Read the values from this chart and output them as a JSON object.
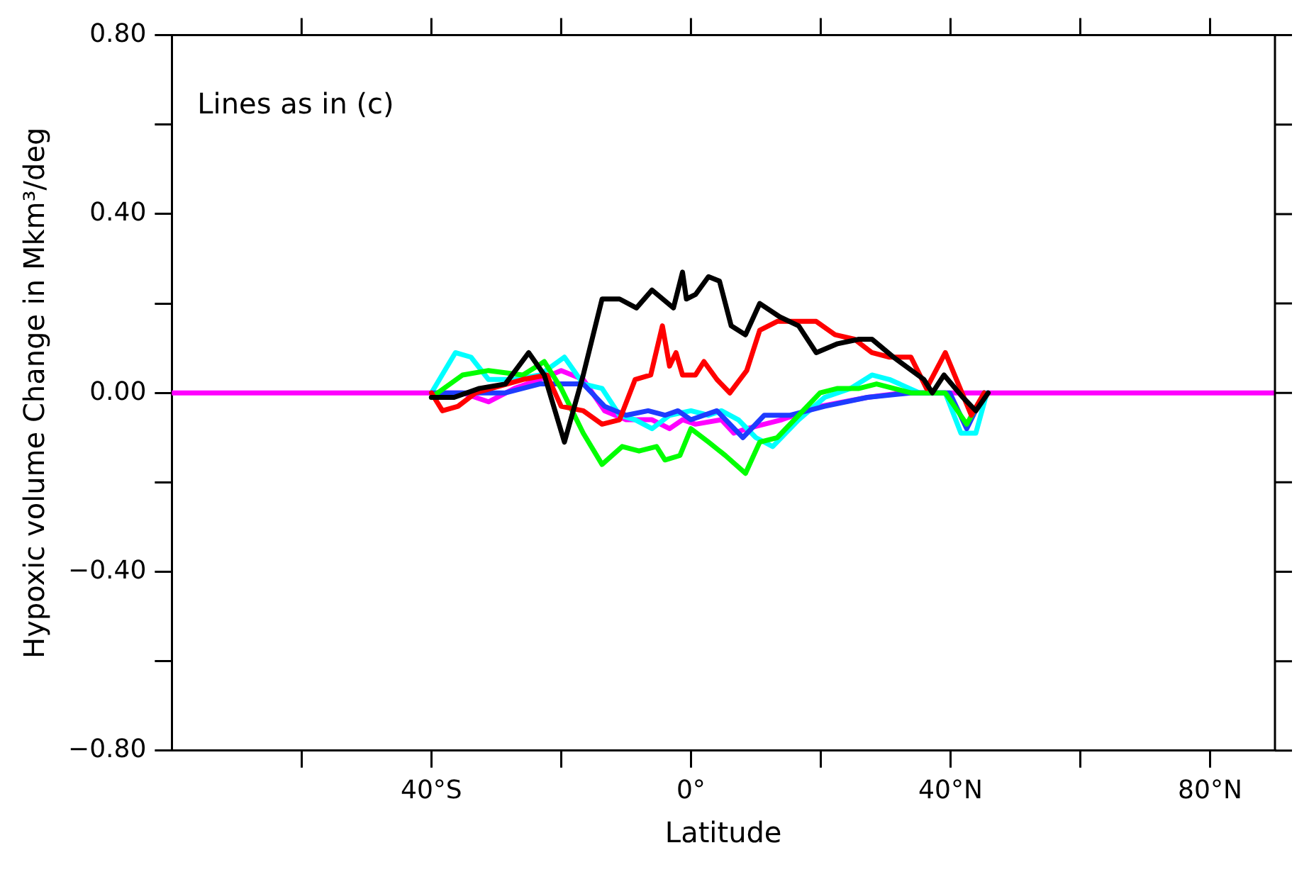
{
  "chart_data": {
    "type": "line",
    "xlabel": "Latitude",
    "ylabel": "Hypoxic volume Change in Mkm³/deg",
    "annotations": [
      "Lines as in (c)"
    ],
    "xlim": [
      -80,
      90
    ],
    "ylim": [
      -0.8,
      0.8
    ],
    "xticks": [
      {
        "value": -60,
        "label": null
      },
      {
        "value": -40,
        "label": "40°S"
      },
      {
        "value": -20,
        "label": null
      },
      {
        "value": 0,
        "label": "0°"
      },
      {
        "value": 20,
        "label": null
      },
      {
        "value": 40,
        "label": "40°N"
      },
      {
        "value": 60,
        "label": null
      },
      {
        "value": 80,
        "label": "80°N"
      }
    ],
    "yticks": [
      {
        "value": -0.8,
        "label": "−0.80"
      },
      {
        "value": -0.6,
        "label": null
      },
      {
        "value": -0.4,
        "label": "−0.40"
      },
      {
        "value": -0.2,
        "label": null
      },
      {
        "value": 0,
        "label": "0.00"
      },
      {
        "value": 0.2,
        "label": null
      },
      {
        "value": 0.4,
        "label": "0.40"
      },
      {
        "value": 0.6,
        "label": null
      },
      {
        "value": 0.8,
        "label": "0.80"
      }
    ],
    "grid": false,
    "legend": false,
    "marker": "none",
    "line_style": "solid",
    "series": [
      {
        "color": "#000000",
        "x": [
          -40,
          -36.5,
          -32.6,
          -28.6,
          -25,
          -22.6,
          -19.5,
          -16.6,
          -13.7,
          -11,
          -8.4,
          -6,
          -2.7,
          -1.3,
          -0.7,
          0.7,
          2.7,
          4.4,
          6.2,
          8.4,
          10.6,
          13.7,
          16.6,
          19.3,
          22.6,
          25.9,
          27.9,
          31.2,
          35.9,
          37.2,
          39,
          41.9,
          43.9,
          45.8
        ],
        "values": [
          -0.01,
          -0.01,
          0.01,
          0.02,
          0.09,
          0.04,
          -0.11,
          0.04,
          0.21,
          0.21,
          0.19,
          0.23,
          0.19,
          0.27,
          0.21,
          0.22,
          0.26,
          0.25,
          0.15,
          0.13,
          0.2,
          0.17,
          0.15,
          0.09,
          0.11,
          0.12,
          0.12,
          0.08,
          0.03,
          0,
          0.04,
          -0.01,
          -0.04,
          0
        ]
      },
      {
        "color": "#ff0000",
        "x": [
          -40,
          -38.3,
          -35.9,
          -33.2,
          -25.9,
          -22.2,
          -20,
          -16.6,
          -13.7,
          -11,
          -8.6,
          -6.2,
          -4.4,
          -3.3,
          -2.3,
          -1.3,
          0.7,
          2,
          4,
          6,
          8.6,
          10.6,
          13.3,
          16,
          19.3,
          22.2,
          25.2,
          27.9,
          30.6,
          33.9,
          36.3,
          39.2,
          41.2,
          43.2,
          45.2
        ],
        "values": [
          0,
          -0.04,
          -0.03,
          0,
          0.03,
          0.04,
          -0.03,
          -0.04,
          -0.07,
          -0.06,
          0.03,
          0.04,
          0.15,
          0.06,
          0.09,
          0.04,
          0.04,
          0.07,
          0.03,
          0,
          0.05,
          0.14,
          0.16,
          0.16,
          0.16,
          0.13,
          0.12,
          0.09,
          0.08,
          0.08,
          0.01,
          0.09,
          0.02,
          -0.05,
          0
        ]
      },
      {
        "color": "#00ff00",
        "x": [
          -40,
          -35.2,
          -31.2,
          -25.9,
          -22.6,
          -20,
          -16.6,
          -13.7,
          -10.6,
          -8,
          -5.3,
          -4,
          -1.7,
          0,
          2.7,
          5.3,
          8.4,
          10.6,
          13.3,
          16.6,
          19.9,
          22.6,
          25.9,
          28.6,
          33.9,
          39.2,
          42.5,
          45.2
        ],
        "values": [
          -0.01,
          0.04,
          0.05,
          0.04,
          0.07,
          0.01,
          -0.09,
          -0.16,
          -0.12,
          -0.13,
          -0.12,
          -0.15,
          -0.14,
          -0.08,
          -0.11,
          -0.14,
          -0.18,
          -0.11,
          -0.1,
          -0.05,
          0,
          0.01,
          0.01,
          0.02,
          0,
          0,
          -0.07,
          0
        ]
      },
      {
        "color": "#1e3cff",
        "x": [
          -40,
          -33.9,
          -28.6,
          -23.3,
          -20,
          -16.6,
          -13.3,
          -10,
          -6.6,
          -4,
          -2,
          0,
          4,
          8,
          11.3,
          15.3,
          20.6,
          27.2,
          33.9,
          39.9,
          42.5,
          45.2
        ],
        "values": [
          0,
          0,
          0,
          0.02,
          0.02,
          0.02,
          -0.03,
          -0.05,
          -0.04,
          -0.05,
          -0.04,
          -0.06,
          -0.04,
          -0.1,
          -0.05,
          -0.05,
          -0.03,
          -0.01,
          0,
          0,
          -0.08,
          0
        ]
      },
      {
        "color": "#00ffff",
        "x": [
          -40,
          -36.3,
          -33.9,
          -31.2,
          -27.2,
          -23.3,
          -19.5,
          -16.6,
          -13.7,
          -11,
          -8.6,
          -6,
          -3.3,
          0,
          2.7,
          4.7,
          7.3,
          10,
          12.6,
          16.6,
          20.6,
          24.6,
          27.9,
          30.6,
          35.2,
          39.2,
          41.6,
          43.9,
          45.6
        ],
        "values": [
          0,
          0.09,
          0.08,
          0.03,
          0.03,
          0.04,
          0.08,
          0.02,
          0.01,
          -0.05,
          -0.06,
          -0.08,
          -0.05,
          -0.04,
          -0.05,
          -0.04,
          -0.06,
          -0.1,
          -0.12,
          -0.06,
          -0.01,
          0.01,
          0.04,
          0.03,
          0,
          0,
          -0.09,
          -0.09,
          0
        ]
      },
      {
        "color": "#ff00ff",
        "x": [
          -80,
          -40,
          -35.2,
          -31.2,
          -27.2,
          -23.3,
          -20,
          -16.6,
          -13.3,
          -10,
          -6,
          -3.3,
          -1.3,
          0.7,
          4.7,
          6.6,
          8.6,
          14,
          19.9,
          27.2,
          32.6,
          40.5,
          90
        ],
        "values": [
          0,
          0,
          0,
          -0.02,
          0.01,
          0.03,
          0.05,
          0.03,
          -0.04,
          -0.06,
          -0.06,
          -0.08,
          -0.06,
          -0.07,
          -0.06,
          -0.09,
          -0.08,
          -0.06,
          -0.03,
          -0.01,
          0,
          0,
          0
        ]
      }
    ]
  }
}
